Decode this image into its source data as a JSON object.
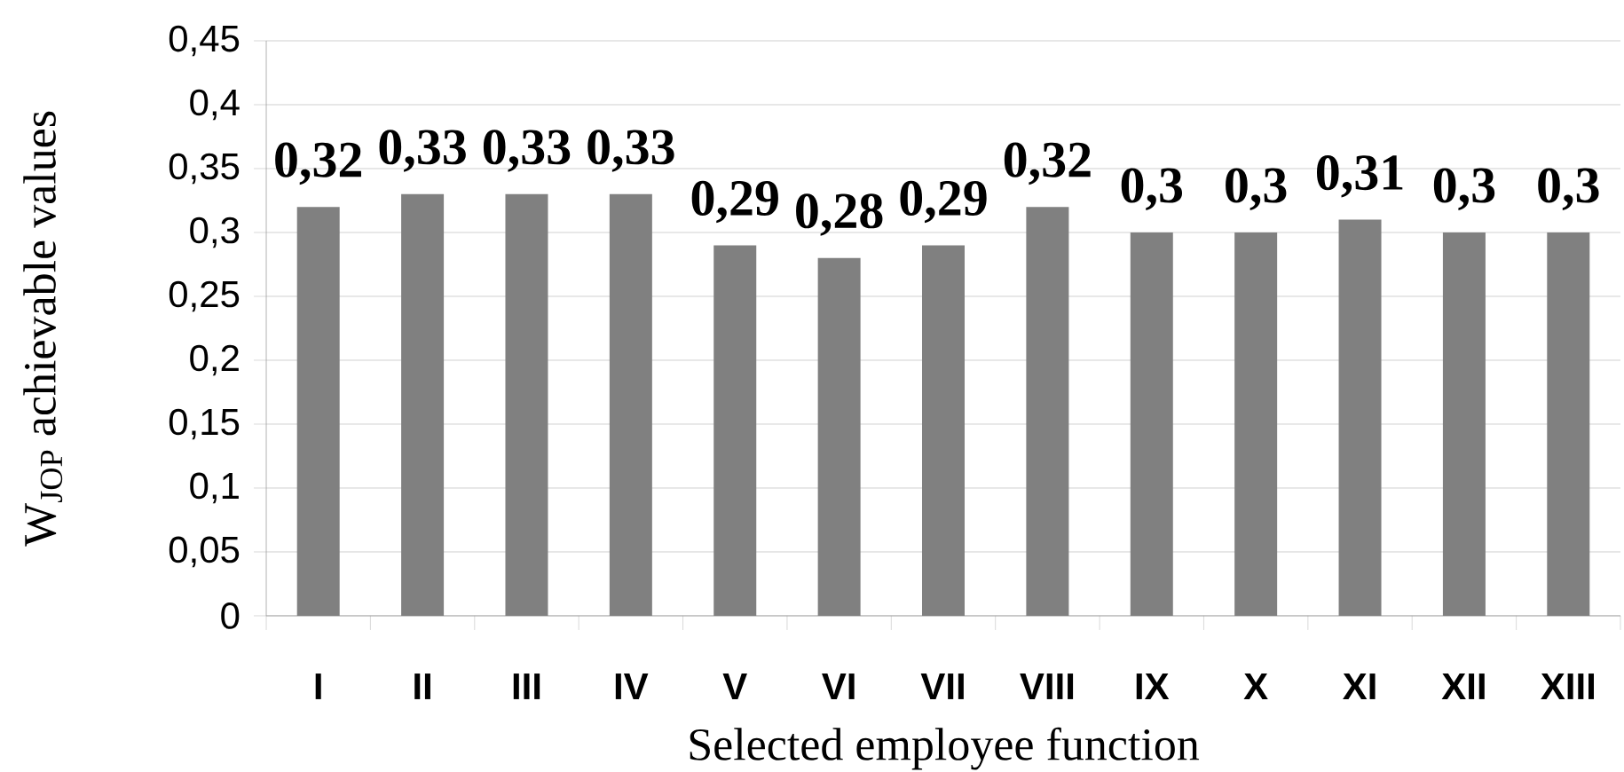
{
  "chart_data": {
    "type": "bar",
    "xlabel": "Selected employee function",
    "ylabel": "W$_{JOP}$ achievable values",
    "categories": [
      "I",
      "II",
      "III",
      "IV",
      "V",
      "VI",
      "VII",
      "VIII",
      "IX",
      "X",
      "XI",
      "XII",
      "XIII"
    ],
    "values": [
      0.32,
      0.33,
      0.33,
      0.33,
      0.29,
      0.28,
      0.29,
      0.32,
      0.3,
      0.3,
      0.31,
      0.3,
      0.3
    ],
    "value_labels": [
      "0,32",
      "0,33",
      "0,33",
      "0,33",
      "0,29",
      "0,28",
      "0,29",
      "0,32",
      "0,3",
      "0,3",
      "0,31",
      "0,3",
      "0,3"
    ],
    "color": "#808080",
    "ylim": [
      0,
      0.45
    ],
    "yticks": [
      0,
      {
        "value": 0.05,
        "label": "0,05"
      },
      {
        "value": 0.1,
        "label": "0,1"
      },
      {
        "value": 0.15,
        "label": "0,15"
      },
      {
        "value": 0.2,
        "label": "0,2"
      },
      {
        "value": 0.25,
        "label": "0,25"
      },
      {
        "value": 0.3,
        "label": "0,3"
      },
      {
        "value": 0.35,
        "label": "0,35"
      },
      {
        "value": 0.4,
        "label": "0,4"
      },
      {
        "value": 0.45,
        "label": "0,45"
      }
    ],
    "grid": "y"
  }
}
